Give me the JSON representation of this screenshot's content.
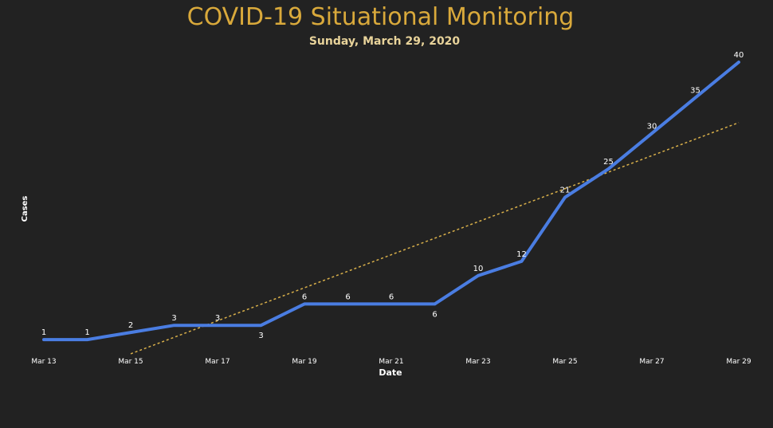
{
  "page": {
    "title": "COVID-19 Situational Monitoring",
    "subtitle": "Sunday, March 29, 2020"
  },
  "chart_data": {
    "type": "line",
    "xlabel": "Date",
    "ylabel": "Cases",
    "x": [
      "Mar 13",
      "Mar 14",
      "Mar 15",
      "Mar 16",
      "Mar 17",
      "Mar 18",
      "Mar 19",
      "Mar 20",
      "Mar 21",
      "Mar 22",
      "Mar 23",
      "Mar 24",
      "Mar 25",
      "Mar 26",
      "Mar 27",
      "Mar 28",
      "Mar 29"
    ],
    "x_tick_labels": [
      "Mar 13",
      "Mar 15",
      "Mar 17",
      "Mar 19",
      "Mar 21",
      "Mar 23",
      "Mar 25",
      "Mar 27",
      "Mar 29"
    ],
    "series": [
      {
        "values": [
          1,
          1,
          2,
          3,
          3,
          3,
          6,
          6,
          6,
          6,
          10,
          12,
          21,
          25,
          30,
          35,
          40
        ],
        "labels": [
          "1",
          "1",
          "2",
          "3",
          "3",
          "3",
          "6",
          "6",
          "6",
          "6",
          "10",
          "12",
          "21",
          "25",
          "30",
          "35",
          "40"
        ],
        "color": "#4a7de2"
      }
    ],
    "trendline": {
      "style": "dotted",
      "color": "#d9b04a",
      "start": {
        "x": "Mar 15",
        "y": -1.0
      },
      "end": {
        "x": "Mar 29",
        "y": 31.5
      }
    },
    "ylim": [
      0,
      40
    ],
    "grid": false,
    "legend": "none",
    "colors": {
      "background": "#222222",
      "title": "#d9a93b",
      "subtitle": "#e8d39a",
      "axis_text": "#ffffff"
    }
  }
}
